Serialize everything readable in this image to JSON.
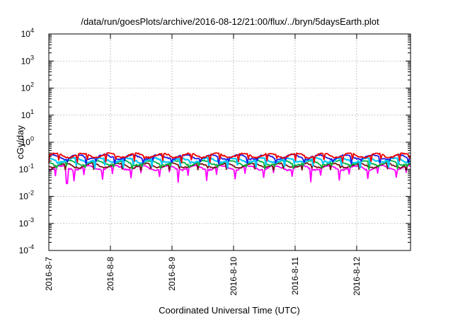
{
  "chart_data": {
    "type": "line",
    "title": "/data/run/goesPlots/archive/2016-08-12/21:00/flux/../bryn/5daysEarth.plot",
    "xlabel": "Coordinated Universal Time (UTC)",
    "ylabel": "cGy/day",
    "yscale": "log",
    "ylim": [
      0.0001,
      10000
    ],
    "y_ticks": [
      {
        "base": "10",
        "exp": "-4",
        "value": 0.0001
      },
      {
        "base": "10",
        "exp": "-3",
        "value": 0.001
      },
      {
        "base": "10",
        "exp": "-2",
        "value": 0.01
      },
      {
        "base": "10",
        "exp": "-1",
        "value": 0.1
      },
      {
        "base": "10",
        "exp": "0",
        "value": 1
      },
      {
        "base": "10",
        "exp": "1",
        "value": 10
      },
      {
        "base": "10",
        "exp": "2",
        "value": 100
      },
      {
        "base": "10",
        "exp": "3",
        "value": 1000
      },
      {
        "base": "10",
        "exp": "4",
        "value": 10000
      }
    ],
    "xlim": [
      "2016-08-07",
      "2016-08-12 21:00"
    ],
    "x_ticks": [
      "2016-8-7",
      "2016-8-8",
      "2016-8-9",
      "2016-8-10",
      "2016-8-11",
      "2016-8-12"
    ],
    "grid": true,
    "legend": "none",
    "series": [
      {
        "color": "#ee0000",
        "x_start": "2016-08-07",
        "x_end": "2016-08-12 21:00",
        "level": 0.33,
        "dip_level": 0.17
      },
      {
        "color": "#1a1ae6",
        "x_start": "2016-08-07",
        "x_end": "2016-08-12 21:00",
        "level": 0.29,
        "dip_level": 0.15
      },
      {
        "color": "#00c8ff",
        "x_start": "2016-08-07",
        "x_end": "2016-08-12 21:00",
        "level": 0.22,
        "dip_level": 0.11
      },
      {
        "color": "#00b33c",
        "x_start": "2016-08-07",
        "x_end": "2016-08-12 21:00",
        "level": 0.175,
        "dip_level": 0.1
      },
      {
        "color": "#7a1414",
        "x_start": "2016-08-07",
        "x_end": "2016-08-12 21:00",
        "level": 0.14,
        "dip_level": 0.09
      },
      {
        "color": "#ff00ff",
        "x_start": "2016-08-07",
        "x_end": "2016-08-12 21:00",
        "level": 0.115,
        "dip_level": 0.03
      }
    ]
  }
}
